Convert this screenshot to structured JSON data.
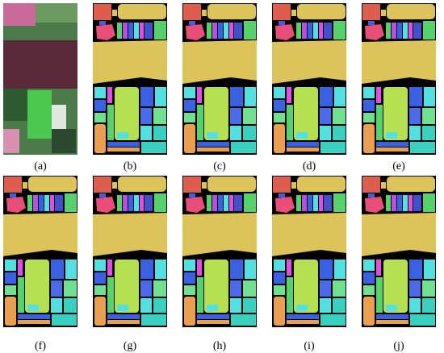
{
  "labels": [
    "(a)",
    "(b)",
    "(c)",
    "(d)",
    "(e)",
    "(f)",
    "(g)",
    "(h)",
    "(i)",
    "(j)"
  ]
}
